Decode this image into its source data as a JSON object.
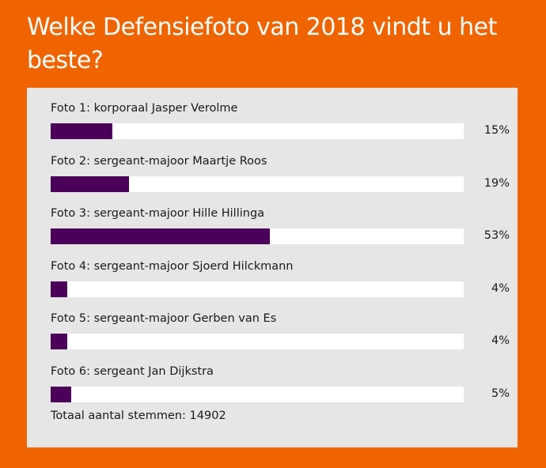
{
  "poll": {
    "title": "Welke Defensiefoto van 2018 vindt u het beste?",
    "options": [
      {
        "label": "Foto 1: korporaal Jasper Verolme",
        "percent": 15,
        "percent_label": "15%"
      },
      {
        "label": "Foto 2: sergeant-majoor Maartje Roos",
        "percent": 19,
        "percent_label": "19%"
      },
      {
        "label": "Foto 3: sergeant-majoor Hille Hillinga",
        "percent": 53,
        "percent_label": "53%"
      },
      {
        "label": "Foto 4: sergeant-majoor Sjoerd Hilckmann",
        "percent": 4,
        "percent_label": "4%"
      },
      {
        "label": "Foto 5: sergeant-majoor Gerben van Es",
        "percent": 4,
        "percent_label": "4%"
      },
      {
        "label": "Foto 6: sergeant Jan Dijkstra",
        "percent": 5,
        "percent_label": "5%"
      }
    ],
    "total_label": "Totaal aantal stemmen: 14902"
  },
  "colors": {
    "background": "#f06400",
    "panel": "#e6e6e6",
    "bar": "#4b005a",
    "track": "#ffffff"
  }
}
